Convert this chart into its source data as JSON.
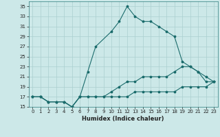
{
  "title": "",
  "xlabel": "Humidex (Indice chaleur)",
  "bg_color": "#cce8e8",
  "grid_color": "#aacfcf",
  "line_color": "#1a6b6b",
  "xlim": [
    -0.5,
    23.5
  ],
  "ylim": [
    15,
    36
  ],
  "yticks": [
    15,
    17,
    19,
    21,
    23,
    25,
    27,
    29,
    31,
    33,
    35
  ],
  "xticks": [
    0,
    1,
    2,
    3,
    4,
    5,
    6,
    7,
    8,
    9,
    10,
    11,
    12,
    13,
    14,
    15,
    16,
    17,
    18,
    19,
    20,
    21,
    22,
    23
  ],
  "line1_x": [
    0,
    1,
    2,
    3,
    4,
    5,
    6,
    7,
    8,
    10,
    11,
    12,
    13,
    14,
    15,
    16,
    17,
    18,
    19,
    20,
    21,
    22,
    23
  ],
  "line1_y": [
    17,
    17,
    16,
    16,
    16,
    15,
    17,
    22,
    27,
    30,
    32,
    35,
    33,
    32,
    32,
    31,
    30,
    29,
    24,
    23,
    22,
    20,
    20
  ],
  "line2_x": [
    0,
    1,
    2,
    3,
    4,
    5,
    6,
    7,
    8,
    9,
    10,
    11,
    12,
    13,
    14,
    15,
    16,
    17,
    18,
    19,
    20,
    21,
    22,
    23
  ],
  "line2_y": [
    17,
    17,
    16,
    16,
    16,
    15,
    17,
    17,
    17,
    17,
    18,
    19,
    20,
    20,
    21,
    21,
    21,
    21,
    22,
    23,
    23,
    22,
    21,
    20
  ],
  "line3_x": [
    0,
    1,
    2,
    3,
    4,
    5,
    6,
    7,
    8,
    9,
    10,
    11,
    12,
    13,
    14,
    15,
    16,
    17,
    18,
    19,
    20,
    21,
    22,
    23
  ],
  "line3_y": [
    17,
    17,
    16,
    16,
    16,
    15,
    17,
    17,
    17,
    17,
    17,
    17,
    17,
    18,
    18,
    18,
    18,
    18,
    18,
    19,
    19,
    19,
    19,
    20
  ],
  "tick_fontsize": 5,
  "xlabel_fontsize": 6,
  "linewidth": 0.8,
  "markersize": 2.5
}
